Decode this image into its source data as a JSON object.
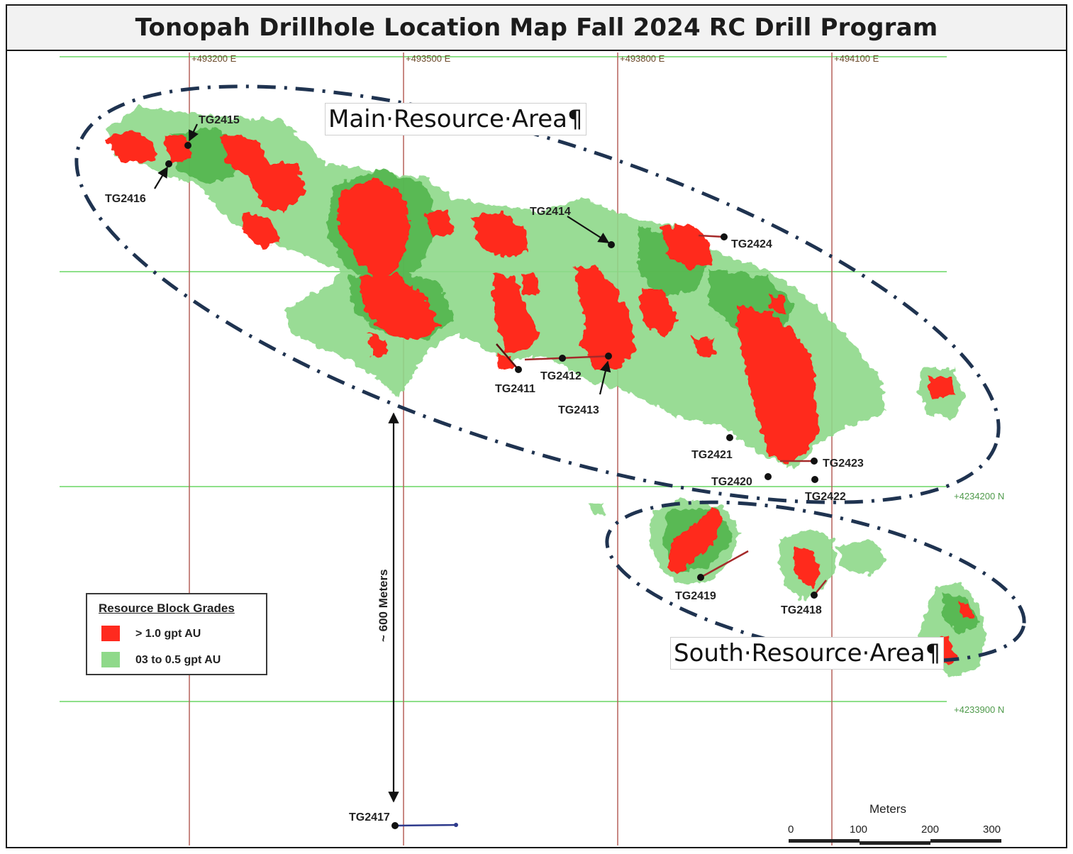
{
  "title": "Tonopah Drillhole Location Map Fall 2024 RC Drill Program",
  "grid": {
    "eastings": [
      "+493200 E",
      "+493500 E",
      "+493800 E",
      "+494100 E"
    ],
    "northings": [
      "+4234200 N",
      "+4233900 N"
    ]
  },
  "areas": {
    "main": "Main·Resource·Area¶",
    "south": "South·Resource·Area¶"
  },
  "drillholes": [
    "TG2411",
    "TG2412",
    "TG2413",
    "TG2414",
    "TG2415",
    "TG2416",
    "TG2417",
    "TG2418",
    "TG2419",
    "TG2420",
    "TG2421",
    "TG2422",
    "TG2423",
    "TG2424"
  ],
  "distance_label": "~ 600 Meters",
  "legend": {
    "title": "Resource Block Grades",
    "high": "> 1.0 gpt AU",
    "low": "03 to 0.5 gpt AU"
  },
  "scale": {
    "unit": "Meters",
    "ticks": [
      "0",
      "100",
      "200",
      "300"
    ]
  },
  "colors": {
    "high_grade": "#ff2a1e",
    "low_grade": "#8fd98a",
    "mid_green": "#4fb34a",
    "grid_green": "#8ee08a",
    "grid_red": "#b5605a",
    "ellipse": "#1f3350",
    "drill_trace": "#a52a2a",
    "tg2417_trace": "#2e3a8c"
  }
}
